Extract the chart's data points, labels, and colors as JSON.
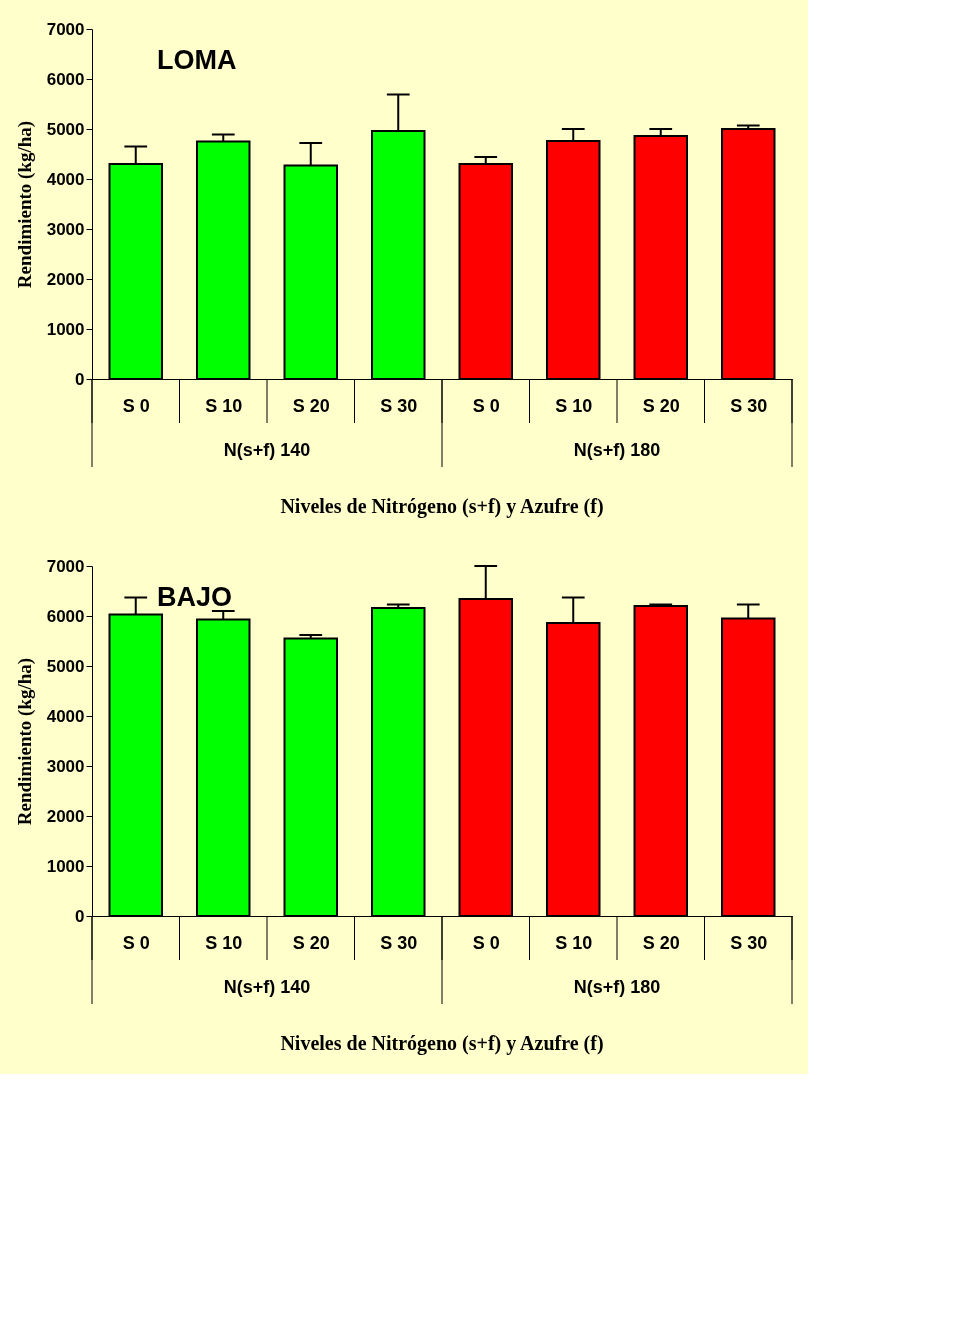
{
  "chart_data": [
    {
      "type": "bar",
      "title": "LOMA",
      "xlabel": "Niveles de Nitrógeno (s+f) y Azufre (f)",
      "ylabel": "Rendimiento (kg/ha)",
      "categories": [
        "S 0",
        "S 10",
        "S 20",
        "S 30",
        "S 0",
        "S 10",
        "S 20",
        "S 30"
      ],
      "ylim": [
        0,
        7000
      ],
      "yticks": [
        0,
        1000,
        2000,
        3000,
        4000,
        5000,
        6000,
        7000
      ],
      "grid": false,
      "legend": false,
      "annotations": [
        "N(s+f) 140",
        "N(s+f) 180"
      ],
      "series": [
        {
          "color": "#00ff00",
          "values": [
            4300,
            4750,
            4270,
            4960,
            null,
            null,
            null,
            null
          ],
          "errors": [
            [
              4300,
              4650
            ],
            [
              4750,
              4890
            ],
            [
              4270,
              4720
            ],
            [
              4960,
              5690
            ],
            null,
            null,
            null,
            null
          ]
        },
        {
          "color": "#ff0000",
          "values": [
            null,
            null,
            null,
            null,
            4300,
            4760,
            4860,
            5000
          ],
          "errors": [
            null,
            null,
            null,
            null,
            [
              4300,
              4440
            ],
            [
              4760,
              5000
            ],
            [
              4860,
              5000
            ],
            [
              5000,
              5070
            ]
          ]
        }
      ]
    },
    {
      "type": "bar",
      "title": "BAJO",
      "xlabel": "Niveles de Nitrógeno (s+f) y Azufre (f)",
      "ylabel": "Rendimiento (kg/ha)",
      "categories": [
        "S 0",
        "S 10",
        "S 20",
        "S 30",
        "S 0",
        "S 10",
        "S 20",
        "S 30"
      ],
      "ylim": [
        0,
        7000
      ],
      "yticks": [
        0,
        1000,
        2000,
        3000,
        4000,
        5000,
        6000,
        7000
      ],
      "grid": false,
      "legend": false,
      "annotations": [
        "N(s+f) 140",
        "N(s+f) 180"
      ],
      "series": [
        {
          "color": "#00ff00",
          "values": [
            6030,
            5930,
            5550,
            6160,
            null,
            null,
            null,
            null
          ],
          "errors": [
            [
              6030,
              6370
            ],
            [
              5930,
              6100
            ],
            [
              5550,
              5620
            ],
            [
              6160,
              6230
            ],
            null,
            null,
            null,
            null
          ]
        },
        {
          "color": "#ff0000",
          "values": [
            null,
            null,
            null,
            null,
            6340,
            5860,
            6200,
            5950
          ],
          "errors": [
            null,
            null,
            null,
            null,
            [
              6340,
              7000
            ],
            [
              5860,
              6370
            ],
            [
              6200,
              6230
            ],
            [
              5950,
              6230
            ]
          ]
        }
      ]
    }
  ]
}
